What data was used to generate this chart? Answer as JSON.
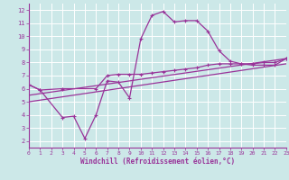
{
  "xlabel": "Windchill (Refroidissement éolien,°C)",
  "xlim": [
    0,
    23
  ],
  "ylim": [
    1.5,
    12.5
  ],
  "xticks": [
    0,
    1,
    2,
    3,
    4,
    5,
    6,
    7,
    8,
    9,
    10,
    11,
    12,
    13,
    14,
    15,
    16,
    17,
    18,
    19,
    20,
    21,
    22,
    23
  ],
  "yticks": [
    2,
    3,
    4,
    5,
    6,
    7,
    8,
    9,
    10,
    11,
    12
  ],
  "bg_color": "#cce8e8",
  "line_color": "#993399",
  "grid_color": "#aadddd",
  "series": {
    "line1_x": [
      0,
      1,
      3,
      4,
      5,
      6,
      7,
      8,
      9,
      10,
      11,
      12,
      13,
      14,
      15,
      16,
      17,
      18,
      19,
      20,
      21,
      22,
      23
    ],
    "line1_y": [
      6.3,
      5.9,
      3.8,
      3.9,
      2.2,
      4.0,
      6.6,
      6.5,
      5.3,
      9.8,
      11.6,
      11.9,
      11.1,
      11.2,
      11.2,
      10.4,
      8.9,
      8.1,
      7.9,
      7.8,
      7.8,
      7.8,
      8.3
    ],
    "line2_x": [
      0,
      1,
      3,
      6,
      7,
      8,
      9,
      10,
      11,
      12,
      13,
      14,
      15,
      16,
      17,
      18,
      19,
      20,
      21,
      22,
      23
    ],
    "line2_y": [
      6.3,
      5.9,
      6.0,
      6.0,
      7.0,
      7.1,
      7.1,
      7.1,
      7.2,
      7.3,
      7.4,
      7.5,
      7.6,
      7.8,
      7.9,
      7.9,
      7.9,
      7.9,
      8.0,
      8.0,
      8.3
    ],
    "line3_x": [
      0,
      23
    ],
    "line3_y": [
      5.0,
      7.9
    ],
    "line4_x": [
      0,
      23
    ],
    "line4_y": [
      5.5,
      8.3
    ]
  }
}
